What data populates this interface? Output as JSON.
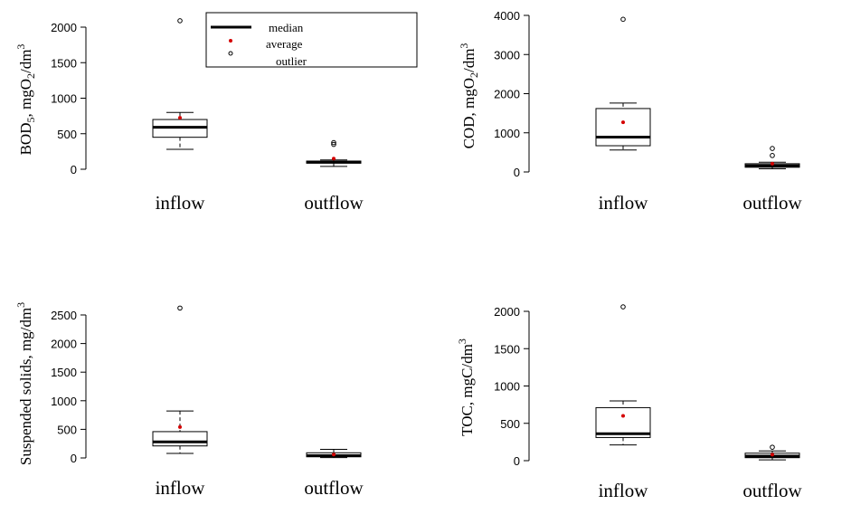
{
  "legend": {
    "median_label": "median",
    "average_label": "average",
    "outlier_label": "outlier"
  },
  "colors": {
    "average": "#d40000",
    "line": "#000000",
    "box_fill": "#ffffff",
    "background": "#ffffff"
  },
  "chart_data": [
    {
      "type": "box",
      "ylabel": "BOD5, mgO2/dm3",
      "ylim": [
        0,
        2150
      ],
      "yticks": [
        0,
        500,
        1000,
        1500,
        2000
      ],
      "categories": [
        "inflow",
        "outflow"
      ],
      "boxes": [
        {
          "category": "inflow",
          "whisker_low": 280,
          "q1": 450,
          "median": 590,
          "q3": 700,
          "whisker_high": 800,
          "average": 725,
          "outliers": [
            2090
          ]
        },
        {
          "category": "outflow",
          "whisker_low": 40,
          "q1": 85,
          "median": 100,
          "q3": 115,
          "whisker_high": 130,
          "average": 150,
          "outliers": [
            350,
            375
          ]
        }
      ]
    },
    {
      "type": "box",
      "ylabel": "COD, mgO2/dm3",
      "ylim": [
        0,
        4100
      ],
      "yticks": [
        0,
        1000,
        2000,
        3000,
        4000
      ],
      "categories": [
        "inflow",
        "outflow"
      ],
      "boxes": [
        {
          "category": "inflow",
          "whisker_low": 560,
          "q1": 670,
          "median": 890,
          "q3": 1620,
          "whisker_high": 1760,
          "average": 1270,
          "outliers": [
            3900
          ]
        },
        {
          "category": "outflow",
          "whisker_low": 80,
          "q1": 120,
          "median": 160,
          "q3": 210,
          "whisker_high": 250,
          "average": 210,
          "outliers": [
            420,
            600
          ]
        }
      ]
    },
    {
      "type": "box",
      "ylabel": "Suspended solids, mg/dm3",
      "ylim": [
        0,
        2800
      ],
      "yticks": [
        0,
        500,
        1000,
        1500,
        2000,
        2500
      ],
      "categories": [
        "inflow",
        "outflow"
      ],
      "boxes": [
        {
          "category": "inflow",
          "whisker_low": 80,
          "q1": 210,
          "median": 280,
          "q3": 460,
          "whisker_high": 820,
          "average": 540,
          "outliers": [
            2620
          ]
        },
        {
          "category": "outflow",
          "whisker_low": 5,
          "q1": 20,
          "median": 40,
          "q3": 90,
          "whisker_high": 150,
          "average": 60,
          "outliers": []
        }
      ]
    },
    {
      "type": "box",
      "ylabel": "TOC, mgC/dm3",
      "ylim": [
        0,
        2100
      ],
      "yticks": [
        0,
        500,
        1000,
        1500,
        2000
      ],
      "categories": [
        "inflow",
        "outflow"
      ],
      "boxes": [
        {
          "category": "inflow",
          "whisker_low": 210,
          "q1": 310,
          "median": 360,
          "q3": 710,
          "whisker_high": 800,
          "average": 600,
          "outliers": [
            2060
          ]
        },
        {
          "category": "outflow",
          "whisker_low": 10,
          "q1": 40,
          "median": 60,
          "q3": 100,
          "whisker_high": 130,
          "average": 80,
          "outliers": [
            180
          ]
        }
      ]
    }
  ]
}
